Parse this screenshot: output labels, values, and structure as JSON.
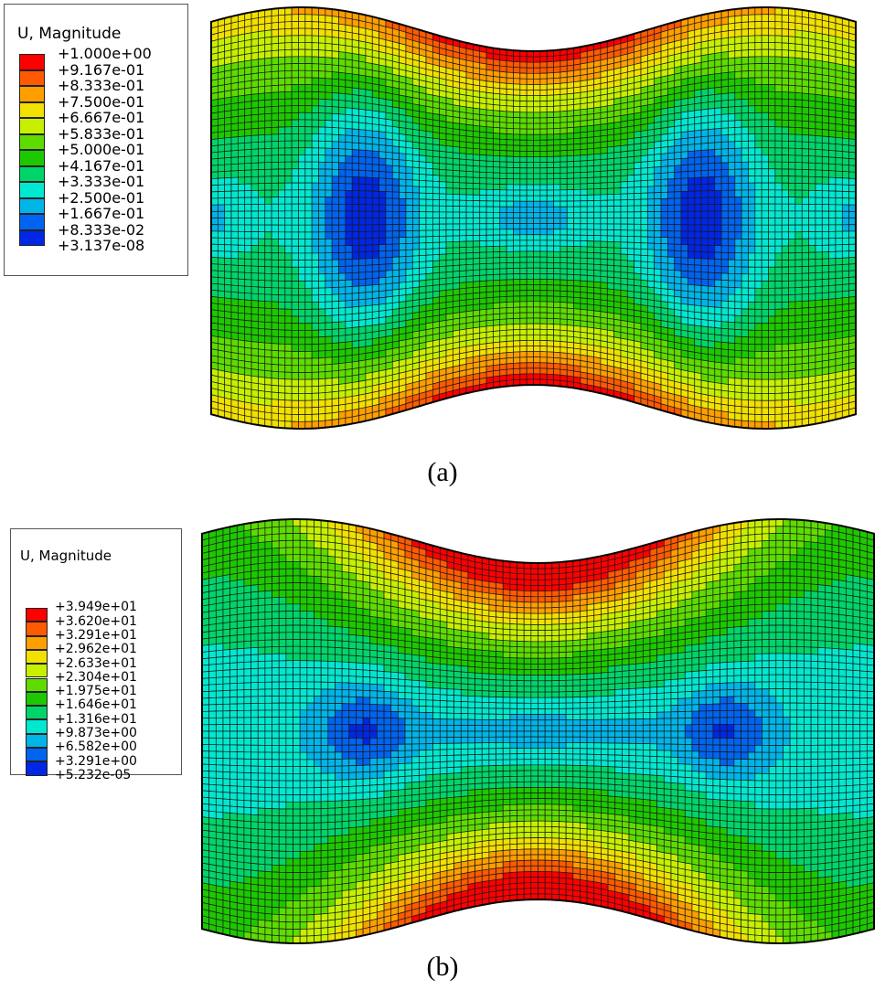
{
  "panels": [
    {
      "caption": "(a)",
      "legend": {
        "title": "U, Magnitude",
        "labels": [
          "+1.000e+00",
          "+9.167e-01",
          "+8.333e-01",
          "+7.500e-01",
          "+6.667e-01",
          "+5.833e-01",
          "+5.000e-01",
          "+4.167e-01",
          "+3.333e-01",
          "+2.500e-01",
          "+1.667e-01",
          "+8.333e-02",
          "+3.137e-08"
        ],
        "colors": [
          "#ff0000",
          "#ff5a00",
          "#ff9e00",
          "#f2e000",
          "#c6f000",
          "#5edc00",
          "#1ec800",
          "#00d56a",
          "#00e8d0",
          "#00b4e8",
          "#0064f0",
          "#0026e6"
        ]
      }
    },
    {
      "caption": "(b)",
      "legend": {
        "title": "U, Magnitude",
        "labels": [
          "+3.949e+01",
          "+3.620e+01",
          "+3.291e+01",
          "+2.962e+01",
          "+2.633e+01",
          "+2.304e+01",
          "+1.975e+01",
          "+1.646e+01",
          "+1.316e+01",
          "+9.873e+00",
          "+6.582e+00",
          "+3.291e+00",
          "+5.232e-05"
        ],
        "colors": [
          "#ff0000",
          "#ff5a00",
          "#ff9e00",
          "#f2e000",
          "#c6f000",
          "#5edc00",
          "#1ec800",
          "#00d56a",
          "#00e8d0",
          "#00b4e8",
          "#0064f0",
          "#0026e6"
        ]
      }
    }
  ]
}
